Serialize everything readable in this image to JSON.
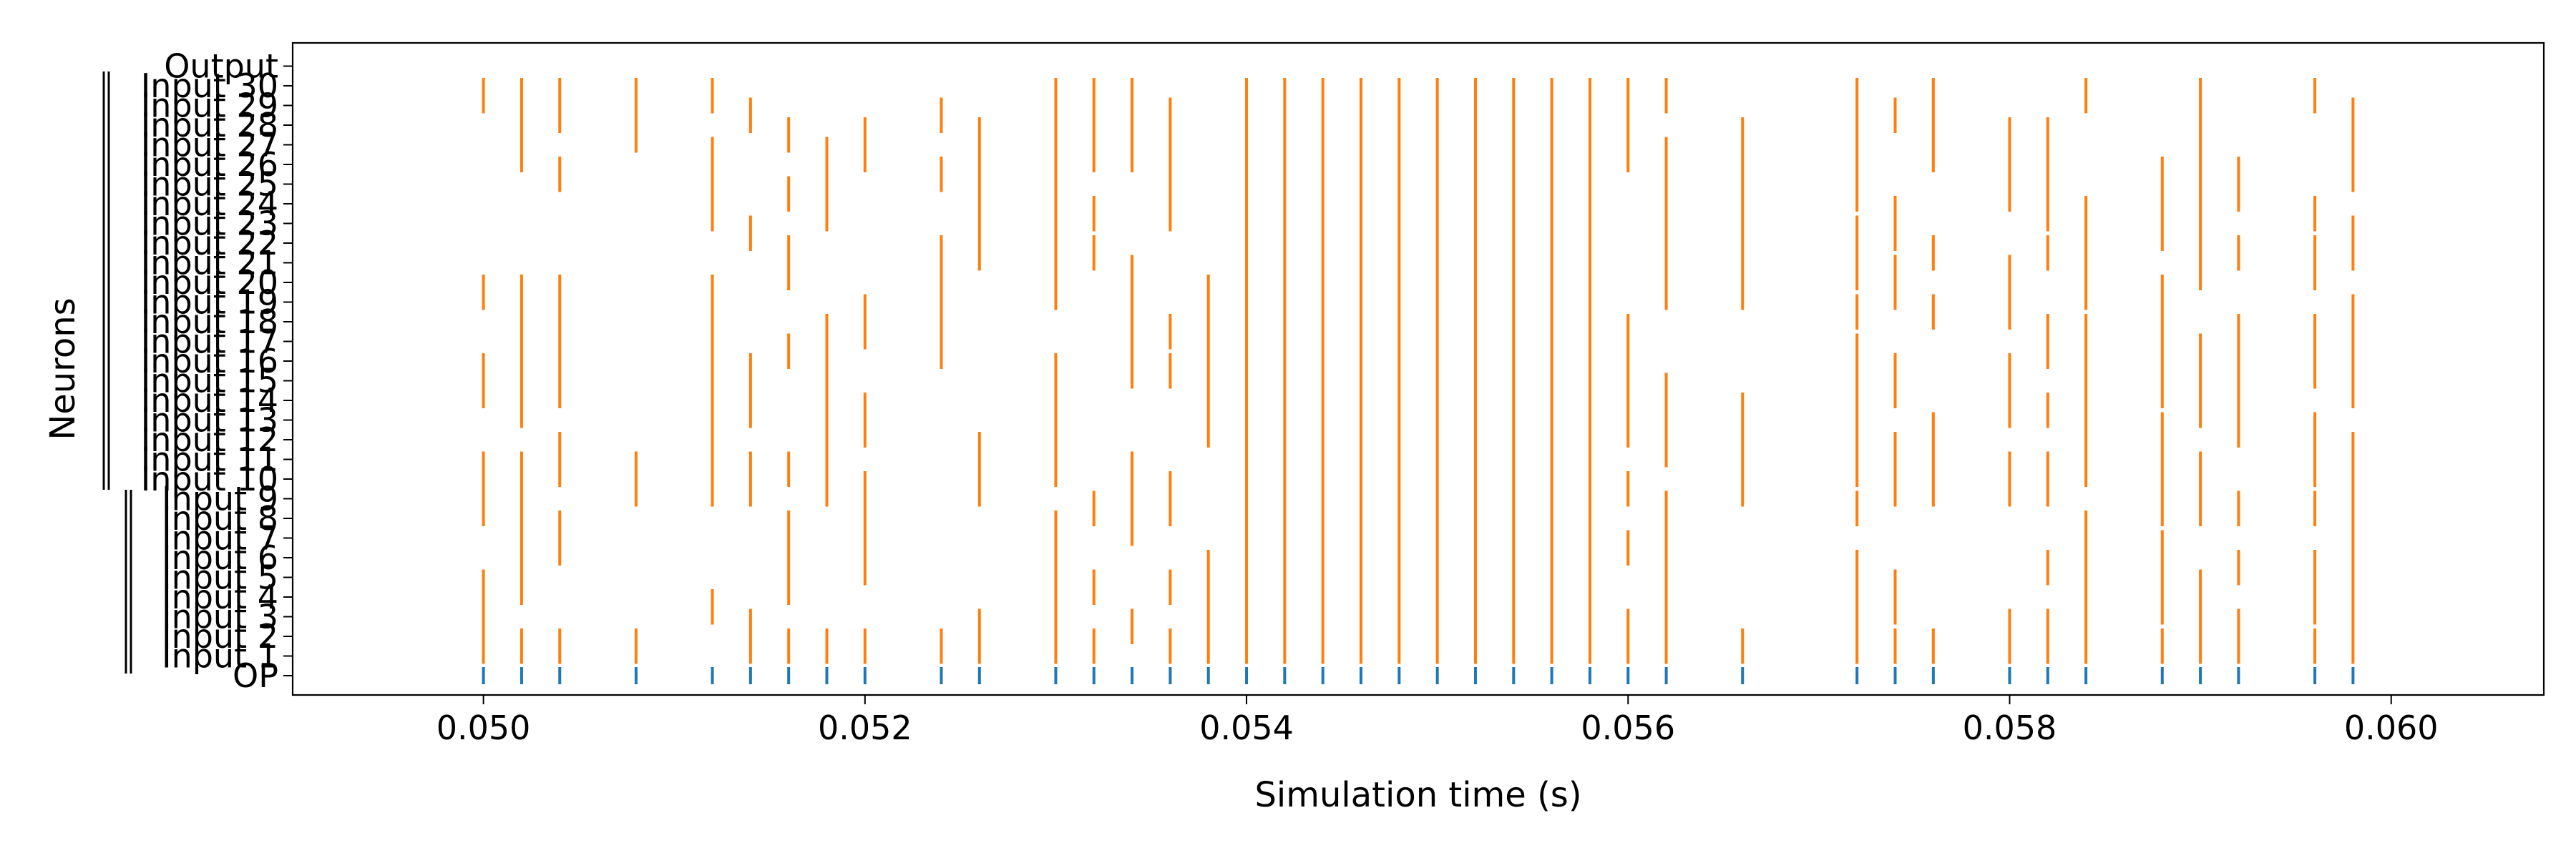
{
  "chart_data": {
    "type": "raster",
    "title": "",
    "xlabel": "Simulation time (s)",
    "ylabel": "Neurons",
    "xlim": [
      0.049,
      0.0608
    ],
    "x_ticks": [
      "0.050",
      "0.052",
      "0.054",
      "0.056",
      "0.058",
      "0.060"
    ],
    "x_tick_values": [
      0.05,
      0.052,
      0.054,
      0.056,
      0.058,
      0.06
    ],
    "rows": [
      "OP",
      "Input 1",
      "Input 2",
      "Input 3",
      "Input 4",
      "Input 5",
      "Input 6",
      "Input 7",
      "Input 8",
      "Input 9",
      "Input 10",
      "Input 11",
      "Input 12",
      "Input 13",
      "Input 14",
      "Input 15",
      "Input 16",
      "Input 17",
      "Input 18",
      "Input 19",
      "Input 20",
      "Input 21",
      "Input 22",
      "Input 23",
      "Input 24",
      "Input 25",
      "Input 26",
      "Input 27",
      "Input 28",
      "Input 29",
      "Input 30",
      "Output"
    ],
    "colors": {
      "output_spikes": "#1f77b4",
      "input_spikes": "#ff7f0e"
    },
    "output_spike_times": [
      0.05,
      0.0502,
      0.0504,
      0.0508,
      0.0512,
      0.0514,
      0.0516,
      0.0518,
      0.052,
      0.0524,
      0.0526,
      0.053,
      0.0532,
      0.0534,
      0.0536,
      0.0538,
      0.054,
      0.0542,
      0.0544,
      0.0546,
      0.0548,
      0.055,
      0.0552,
      0.0554,
      0.0556,
      0.0558,
      0.056,
      0.0562,
      0.0566,
      0.0572,
      0.0574,
      0.0576,
      0.058,
      0.0582,
      0.0584,
      0.0588,
      0.059,
      0.0592,
      0.0596,
      0.0598
    ],
    "input_spike_segments": [
      {
        "t": 0.05,
        "rows": [
          [
            1,
            5
          ],
          [
            8,
            11
          ],
          [
            14,
            16
          ],
          [
            19,
            20
          ],
          [
            29,
            30
          ]
        ]
      },
      {
        "t": 0.0502,
        "rows": [
          [
            1,
            2
          ],
          [
            4,
            11
          ],
          [
            13,
            20
          ],
          [
            26,
            30
          ]
        ]
      },
      {
        "t": 0.0504,
        "rows": [
          [
            1,
            2
          ],
          [
            6,
            8
          ],
          [
            10,
            12
          ],
          [
            14,
            20
          ],
          [
            25,
            26
          ],
          [
            28,
            30
          ]
        ]
      },
      {
        "t": 0.0508,
        "rows": [
          [
            1,
            2
          ],
          [
            9,
            11
          ],
          [
            27,
            30
          ]
        ]
      },
      {
        "t": 0.0512,
        "rows": [
          [
            3,
            4
          ],
          [
            9,
            20
          ],
          [
            23,
            27
          ],
          [
            29,
            30
          ]
        ]
      },
      {
        "t": 0.0514,
        "rows": [
          [
            1,
            3
          ],
          [
            9,
            11
          ],
          [
            13,
            16
          ],
          [
            22,
            23
          ],
          [
            28,
            29
          ]
        ]
      },
      {
        "t": 0.0516,
        "rows": [
          [
            1,
            2
          ],
          [
            4,
            8
          ],
          [
            10,
            11
          ],
          [
            16,
            17
          ],
          [
            20,
            22
          ],
          [
            24,
            25
          ],
          [
            27,
            28
          ]
        ]
      },
      {
        "t": 0.0518,
        "rows": [
          [
            1,
            2
          ],
          [
            9,
            18
          ],
          [
            23,
            27
          ]
        ]
      },
      {
        "t": 0.052,
        "rows": [
          [
            1,
            2
          ],
          [
            5,
            10
          ],
          [
            12,
            14
          ],
          [
            17,
            19
          ],
          [
            26,
            28
          ]
        ]
      },
      {
        "t": 0.0524,
        "rows": [
          [
            1,
            2
          ],
          [
            16,
            22
          ],
          [
            25,
            26
          ],
          [
            28,
            29
          ]
        ]
      },
      {
        "t": 0.0526,
        "rows": [
          [
            1,
            3
          ],
          [
            9,
            12
          ],
          [
            21,
            28
          ]
        ]
      },
      {
        "t": 0.053,
        "rows": [
          [
            1,
            8
          ],
          [
            10,
            16
          ],
          [
            19,
            30
          ]
        ]
      },
      {
        "t": 0.0532,
        "rows": [
          [
            1,
            2
          ],
          [
            4,
            5
          ],
          [
            8,
            9
          ],
          [
            21,
            22
          ],
          [
            23,
            24
          ],
          [
            26,
            30
          ]
        ]
      },
      {
        "t": 0.0534,
        "rows": [
          [
            2,
            3
          ],
          [
            7,
            11
          ],
          [
            15,
            21
          ],
          [
            26,
            30
          ]
        ]
      },
      {
        "t": 0.0536,
        "rows": [
          [
            1,
            2
          ],
          [
            4,
            5
          ],
          [
            8,
            10
          ],
          [
            15,
            16
          ],
          [
            17,
            18
          ],
          [
            23,
            29
          ]
        ]
      },
      {
        "t": 0.0538,
        "rows": [
          [
            1,
            6
          ],
          [
            12,
            20
          ]
        ]
      },
      {
        "t": 0.054,
        "rows": [
          [
            1,
            30
          ]
        ]
      },
      {
        "t": 0.0542,
        "rows": [
          [
            1,
            30
          ]
        ]
      },
      {
        "t": 0.0544,
        "rows": [
          [
            1,
            30
          ]
        ]
      },
      {
        "t": 0.0546,
        "rows": [
          [
            1,
            30
          ]
        ]
      },
      {
        "t": 0.0548,
        "rows": [
          [
            1,
            30
          ]
        ]
      },
      {
        "t": 0.055,
        "rows": [
          [
            1,
            30
          ]
        ]
      },
      {
        "t": 0.0552,
        "rows": [
          [
            1,
            30
          ]
        ]
      },
      {
        "t": 0.0554,
        "rows": [
          [
            1,
            30
          ]
        ]
      },
      {
        "t": 0.0556,
        "rows": [
          [
            1,
            30
          ]
        ]
      },
      {
        "t": 0.0558,
        "rows": [
          [
            1,
            30
          ]
        ]
      },
      {
        "t": 0.056,
        "rows": [
          [
            1,
            3
          ],
          [
            6,
            7
          ],
          [
            9,
            10
          ],
          [
            12,
            18
          ],
          [
            26,
            30
          ]
        ]
      },
      {
        "t": 0.0562,
        "rows": [
          [
            1,
            9
          ],
          [
            11,
            15
          ],
          [
            19,
            27
          ],
          [
            29,
            30
          ]
        ]
      },
      {
        "t": 0.0566,
        "rows": [
          [
            1,
            2
          ],
          [
            9,
            14
          ],
          [
            19,
            28
          ]
        ]
      },
      {
        "t": 0.0572,
        "rows": [
          [
            1,
            6
          ],
          [
            8,
            9
          ],
          [
            10,
            17
          ],
          [
            18,
            19
          ],
          [
            20,
            23
          ],
          [
            24,
            30
          ]
        ]
      },
      {
        "t": 0.0574,
        "rows": [
          [
            1,
            2
          ],
          [
            3,
            5
          ],
          [
            9,
            12
          ],
          [
            14,
            16
          ],
          [
            19,
            21
          ],
          [
            22,
            24
          ],
          [
            28,
            29
          ]
        ]
      },
      {
        "t": 0.0576,
        "rows": [
          [
            1,
            2
          ],
          [
            9,
            13
          ],
          [
            18,
            19
          ],
          [
            21,
            22
          ],
          [
            26,
            30
          ]
        ]
      },
      {
        "t": 0.058,
        "rows": [
          [
            1,
            3
          ],
          [
            9,
            11
          ],
          [
            13,
            16
          ],
          [
            18,
            21
          ],
          [
            24,
            28
          ]
        ]
      },
      {
        "t": 0.0582,
        "rows": [
          [
            1,
            3
          ],
          [
            5,
            6
          ],
          [
            9,
            11
          ],
          [
            13,
            14
          ],
          [
            16,
            18
          ],
          [
            21,
            22
          ],
          [
            23,
            28
          ]
        ]
      },
      {
        "t": 0.0584,
        "rows": [
          [
            1,
            8
          ],
          [
            10,
            18
          ],
          [
            19,
            24
          ],
          [
            29,
            30
          ]
        ]
      },
      {
        "t": 0.0588,
        "rows": [
          [
            1,
            2
          ],
          [
            3,
            7
          ],
          [
            8,
            13
          ],
          [
            14,
            20
          ],
          [
            22,
            26
          ]
        ]
      },
      {
        "t": 0.059,
        "rows": [
          [
            1,
            5
          ],
          [
            8,
            11
          ],
          [
            13,
            17
          ],
          [
            20,
            30
          ]
        ]
      },
      {
        "t": 0.0592,
        "rows": [
          [
            1,
            3
          ],
          [
            5,
            6
          ],
          [
            8,
            9
          ],
          [
            12,
            18
          ],
          [
            21,
            22
          ],
          [
            24,
            26
          ]
        ]
      },
      {
        "t": 0.0596,
        "rows": [
          [
            1,
            2
          ],
          [
            3,
            6
          ],
          [
            8,
            9
          ],
          [
            10,
            13
          ],
          [
            15,
            18
          ],
          [
            20,
            22
          ],
          [
            23,
            24
          ],
          [
            29,
            30
          ]
        ]
      },
      {
        "t": 0.0598,
        "rows": [
          [
            1,
            12
          ],
          [
            14,
            19
          ],
          [
            21,
            23
          ],
          [
            25,
            29
          ]
        ]
      }
    ]
  }
}
